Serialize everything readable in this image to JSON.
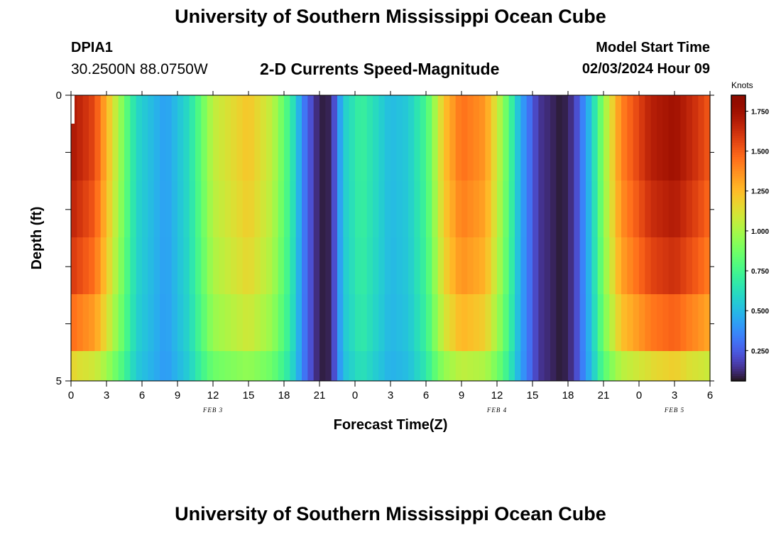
{
  "header": {
    "title": "University of Southern Mississippi Ocean Cube",
    "station_id": "DPIA1",
    "coords": "30.2500N  88.0750W",
    "subtitle": "2-D Currents Speed-Magnitude",
    "model_start_label": "Model Start Time",
    "model_start_value": "02/03/2024 Hour 09"
  },
  "footer": {
    "title": "University of Southern Mississippi Ocean Cube"
  },
  "chart_data": {
    "type": "heatmap",
    "title": "2-D Currents Speed-Magnitude",
    "xlabel": "Forecast Time(Z)",
    "ylabel": "Depth (ft)",
    "xlim": [
      0,
      54
    ],
    "ylim": [
      5,
      0
    ],
    "x_tick_labels": [
      "0",
      "3",
      "6",
      "9",
      "12",
      "15",
      "18",
      "21",
      "0",
      "3",
      "6",
      "9",
      "12",
      "15",
      "18",
      "21",
      "0",
      "3",
      "6"
    ],
    "y_tick_labels": [
      "0",
      "5"
    ],
    "day_labels": [
      {
        "label": "FEB 3",
        "hours": 12
      },
      {
        "label": "FEB 4",
        "hours": 36
      },
      {
        "label": "FEB 5",
        "hours": 51
      }
    ],
    "colorbar": {
      "label": "Knots",
      "ticks": [
        "0.250",
        "0.500",
        "0.750",
        "1.000",
        "1.250",
        "1.500",
        "1.750"
      ],
      "range": [
        0.06,
        1.85
      ],
      "colormap": "turbo"
    },
    "depth_layers_ft": [
      0,
      1,
      2,
      3,
      4,
      5
    ],
    "keyframes": [
      {
        "hour": 0,
        "speed": 1.72
      },
      {
        "hour": 2,
        "speed": 1.55
      },
      {
        "hour": 4,
        "speed": 1.0
      },
      {
        "hour": 5.5,
        "speed": 0.6
      },
      {
        "hour": 8,
        "speed": 0.42
      },
      {
        "hour": 10,
        "speed": 0.62
      },
      {
        "hour": 12,
        "speed": 1.05
      },
      {
        "hour": 15,
        "speed": 1.22
      },
      {
        "hour": 17,
        "speed": 1.05
      },
      {
        "hour": 18.5,
        "speed": 0.72
      },
      {
        "hour": 19.8,
        "speed": 0.3
      },
      {
        "hour": 21,
        "speed": 0.08
      },
      {
        "hour": 22,
        "speed": 0.1
      },
      {
        "hour": 23,
        "speed": 0.55
      },
      {
        "hour": 24.5,
        "speed": 0.72
      },
      {
        "hour": 27,
        "speed": 0.5
      },
      {
        "hour": 28.5,
        "speed": 0.55
      },
      {
        "hour": 30,
        "speed": 0.75
      },
      {
        "hour": 31.5,
        "speed": 1.22
      },
      {
        "hour": 33,
        "speed": 1.45
      },
      {
        "hour": 35,
        "speed": 1.35
      },
      {
        "hour": 36.5,
        "speed": 0.95
      },
      {
        "hour": 38,
        "speed": 0.45
      },
      {
        "hour": 39.5,
        "speed": 0.15
      },
      {
        "hour": 41.5,
        "speed": 0.07
      },
      {
        "hour": 42.5,
        "speed": 0.15
      },
      {
        "hour": 44,
        "speed": 0.55
      },
      {
        "hour": 45,
        "speed": 0.95
      },
      {
        "hour": 46.5,
        "speed": 1.4
      },
      {
        "hour": 49,
        "speed": 1.68
      },
      {
        "hour": 51,
        "speed": 1.75
      },
      {
        "hour": 53,
        "speed": 1.6
      },
      {
        "hour": 54,
        "speed": 1.5
      }
    ],
    "depth_factors": [
      1.0,
      1.0,
      0.97,
      0.93,
      0.85,
      0.68
    ]
  }
}
